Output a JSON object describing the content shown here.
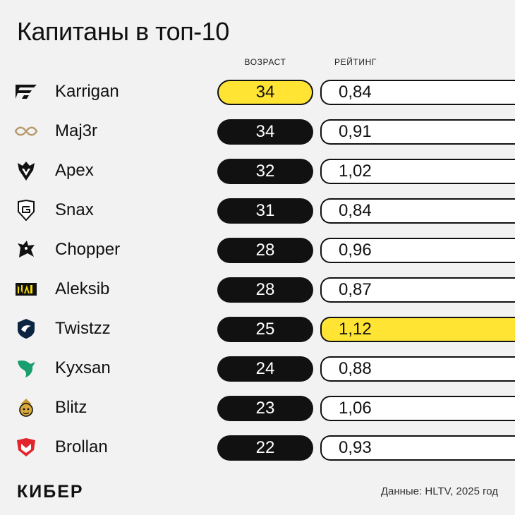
{
  "chart_data": {
    "type": "table",
    "title": "Капитаны в топ-10",
    "columns": [
      "ВОЗРАСТ",
      "РЕЙТИНГ"
    ],
    "highlight_color": "#ffe433",
    "rows": [
      {
        "name": "Karrigan",
        "age": "34",
        "rating": "0,84",
        "icon": "faze-logo-icon",
        "age_highlight": true,
        "rating_highlight": false
      },
      {
        "name": "Maj3r",
        "age": "34",
        "rating": "0,91",
        "icon": "eternal-fire-logo-icon",
        "age_highlight": false,
        "rating_highlight": false
      },
      {
        "name": "Apex",
        "age": "32",
        "rating": "1,02",
        "icon": "vitality-logo-icon",
        "age_highlight": false,
        "rating_highlight": false
      },
      {
        "name": "Snax",
        "age": "31",
        "rating": "0,84",
        "icon": "g2-logo-icon",
        "age_highlight": false,
        "rating_highlight": false
      },
      {
        "name": "Chopper",
        "age": "28",
        "rating": "0,96",
        "icon": "spirit-logo-icon",
        "age_highlight": false,
        "rating_highlight": false
      },
      {
        "name": "Aleksib",
        "age": "28",
        "rating": "0,87",
        "icon": "navi-logo-icon",
        "age_highlight": false,
        "rating_highlight": false
      },
      {
        "name": "Twistzz",
        "age": "25",
        "rating": "1,12",
        "icon": "liquid-logo-icon",
        "age_highlight": false,
        "rating_highlight": true
      },
      {
        "name": "Kyxsan",
        "age": "24",
        "rating": "0,88",
        "icon": "falcons-logo-icon",
        "age_highlight": false,
        "rating_highlight": false
      },
      {
        "name": "Blitz",
        "age": "23",
        "rating": "1,06",
        "icon": "mongolz-logo-icon",
        "age_highlight": false,
        "rating_highlight": false
      },
      {
        "name": "Brollan",
        "age": "22",
        "rating": "0,93",
        "icon": "mouz-logo-icon",
        "age_highlight": false,
        "rating_highlight": false
      }
    ]
  },
  "footer": {
    "brand": "КИБЕР",
    "source": "Данные: HLTV, 2025 год"
  }
}
